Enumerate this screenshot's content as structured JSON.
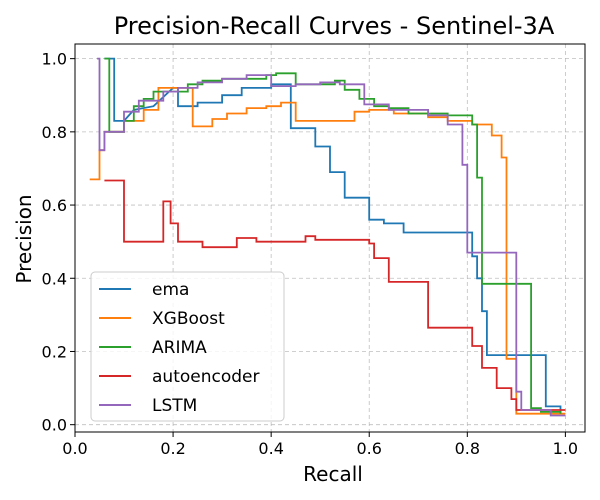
{
  "chart_data": {
    "type": "line",
    "step": true,
    "title": "Precision-Recall Curves - Sentinel-3A",
    "xlabel": "Recall",
    "ylabel": "Precision",
    "xlim": [
      0.0,
      1.04
    ],
    "ylim": [
      -0.02,
      1.04
    ],
    "xticks": [
      0.0,
      0.2,
      0.4,
      0.6,
      0.8,
      1.0
    ],
    "yticks": [
      0.0,
      0.2,
      0.4,
      0.6,
      0.8,
      1.0
    ],
    "xtick_labels": [
      "0.0",
      "0.2",
      "0.4",
      "0.6",
      "0.8",
      "1.0"
    ],
    "ytick_labels": [
      "0.0",
      "0.2",
      "0.4",
      "0.6",
      "0.8",
      "1.0"
    ],
    "grid": true,
    "legend_position": "lower-left",
    "series": [
      {
        "name": "ema",
        "color": "#1f77b4",
        "points": [
          [
            0.06,
            1.0
          ],
          [
            0.08,
            1.0
          ],
          [
            0.08,
            0.83
          ],
          [
            0.1,
            0.83
          ],
          [
            0.12,
            0.86
          ],
          [
            0.16,
            0.87
          ],
          [
            0.2,
            0.92
          ],
          [
            0.21,
            0.92
          ],
          [
            0.21,
            0.87
          ],
          [
            0.25,
            0.87
          ],
          [
            0.25,
            0.88
          ],
          [
            0.3,
            0.88
          ],
          [
            0.3,
            0.9
          ],
          [
            0.34,
            0.9
          ],
          [
            0.34,
            0.92
          ],
          [
            0.4,
            0.92
          ],
          [
            0.4,
            0.93
          ],
          [
            0.44,
            0.93
          ],
          [
            0.44,
            0.81
          ],
          [
            0.49,
            0.81
          ],
          [
            0.49,
            0.76
          ],
          [
            0.52,
            0.76
          ],
          [
            0.52,
            0.69
          ],
          [
            0.55,
            0.69
          ],
          [
            0.55,
            0.62
          ],
          [
            0.6,
            0.62
          ],
          [
            0.6,
            0.56
          ],
          [
            0.63,
            0.56
          ],
          [
            0.63,
            0.55
          ],
          [
            0.67,
            0.55
          ],
          [
            0.67,
            0.525
          ],
          [
            0.81,
            0.525
          ],
          [
            0.81,
            0.46
          ],
          [
            0.82,
            0.46
          ],
          [
            0.82,
            0.4
          ],
          [
            0.83,
            0.4
          ],
          [
            0.83,
            0.31
          ],
          [
            0.84,
            0.31
          ],
          [
            0.84,
            0.19
          ],
          [
            0.96,
            0.19
          ],
          [
            0.96,
            0.05
          ],
          [
            0.99,
            0.05
          ],
          [
            0.99,
            0.03
          ]
        ]
      },
      {
        "name": "XGBoost",
        "color": "#ff7f0e",
        "points": [
          [
            0.03,
            0.67
          ],
          [
            0.05,
            0.67
          ],
          [
            0.05,
            0.75
          ],
          [
            0.06,
            0.75
          ],
          [
            0.06,
            0.8
          ],
          [
            0.1,
            0.8
          ],
          [
            0.1,
            0.83
          ],
          [
            0.14,
            0.83
          ],
          [
            0.14,
            0.86
          ],
          [
            0.17,
            0.86
          ],
          [
            0.17,
            0.92
          ],
          [
            0.24,
            0.92
          ],
          [
            0.24,
            0.815
          ],
          [
            0.28,
            0.815
          ],
          [
            0.28,
            0.835
          ],
          [
            0.31,
            0.835
          ],
          [
            0.31,
            0.85
          ],
          [
            0.35,
            0.85
          ],
          [
            0.35,
            0.865
          ],
          [
            0.39,
            0.865
          ],
          [
            0.39,
            0.87
          ],
          [
            0.42,
            0.87
          ],
          [
            0.42,
            0.88
          ],
          [
            0.45,
            0.88
          ],
          [
            0.45,
            0.83
          ],
          [
            0.57,
            0.83
          ],
          [
            0.57,
            0.855
          ],
          [
            0.6,
            0.855
          ],
          [
            0.6,
            0.86
          ],
          [
            0.65,
            0.86
          ],
          [
            0.65,
            0.85
          ],
          [
            0.72,
            0.85
          ],
          [
            0.72,
            0.84
          ],
          [
            0.76,
            0.84
          ],
          [
            0.76,
            0.83
          ],
          [
            0.81,
            0.83
          ],
          [
            0.81,
            0.82
          ],
          [
            0.85,
            0.82
          ],
          [
            0.85,
            0.79
          ],
          [
            0.87,
            0.79
          ],
          [
            0.87,
            0.73
          ],
          [
            0.88,
            0.73
          ],
          [
            0.88,
            0.18
          ],
          [
            0.9,
            0.18
          ],
          [
            0.9,
            0.03
          ],
          [
            1.0,
            0.03
          ]
        ]
      },
      {
        "name": "ARIMA",
        "color": "#2ca02c",
        "points": [
          [
            0.06,
            1.0
          ],
          [
            0.07,
            1.0
          ],
          [
            0.07,
            0.8
          ],
          [
            0.1,
            0.8
          ],
          [
            0.1,
            0.83
          ],
          [
            0.12,
            0.83
          ],
          [
            0.12,
            0.87
          ],
          [
            0.14,
            0.87
          ],
          [
            0.14,
            0.89
          ],
          [
            0.16,
            0.89
          ],
          [
            0.16,
            0.91
          ],
          [
            0.23,
            0.91
          ],
          [
            0.23,
            0.93
          ],
          [
            0.26,
            0.93
          ],
          [
            0.26,
            0.94
          ],
          [
            0.3,
            0.94
          ],
          [
            0.3,
            0.945
          ],
          [
            0.39,
            0.945
          ],
          [
            0.39,
            0.955
          ],
          [
            0.41,
            0.955
          ],
          [
            0.41,
            0.96
          ],
          [
            0.45,
            0.96
          ],
          [
            0.45,
            0.93
          ],
          [
            0.53,
            0.93
          ],
          [
            0.53,
            0.94
          ],
          [
            0.55,
            0.94
          ],
          [
            0.55,
            0.915
          ],
          [
            0.58,
            0.915
          ],
          [
            0.58,
            0.89
          ],
          [
            0.61,
            0.89
          ],
          [
            0.61,
            0.87
          ],
          [
            0.64,
            0.87
          ],
          [
            0.64,
            0.865
          ],
          [
            0.68,
            0.865
          ],
          [
            0.68,
            0.85
          ],
          [
            0.76,
            0.85
          ],
          [
            0.76,
            0.845
          ],
          [
            0.81,
            0.845
          ],
          [
            0.81,
            0.82
          ],
          [
            0.82,
            0.82
          ],
          [
            0.82,
            0.675
          ],
          [
            0.83,
            0.675
          ],
          [
            0.83,
            0.385
          ],
          [
            0.93,
            0.385
          ],
          [
            0.93,
            0.045
          ],
          [
            0.95,
            0.045
          ],
          [
            0.95,
            0.035
          ],
          [
            0.99,
            0.035
          ],
          [
            0.99,
            0.03
          ]
        ]
      },
      {
        "name": "autoencoder",
        "color": "#d62728",
        "points": [
          [
            0.06,
            0.667
          ],
          [
            0.1,
            0.667
          ],
          [
            0.1,
            0.5
          ],
          [
            0.18,
            0.5
          ],
          [
            0.18,
            0.61
          ],
          [
            0.195,
            0.61
          ],
          [
            0.195,
            0.55
          ],
          [
            0.21,
            0.55
          ],
          [
            0.21,
            0.5
          ],
          [
            0.26,
            0.5
          ],
          [
            0.26,
            0.485
          ],
          [
            0.33,
            0.485
          ],
          [
            0.33,
            0.51
          ],
          [
            0.37,
            0.51
          ],
          [
            0.37,
            0.5
          ],
          [
            0.47,
            0.5
          ],
          [
            0.47,
            0.515
          ],
          [
            0.49,
            0.515
          ],
          [
            0.49,
            0.505
          ],
          [
            0.6,
            0.505
          ],
          [
            0.6,
            0.495
          ],
          [
            0.61,
            0.495
          ],
          [
            0.61,
            0.455
          ],
          [
            0.64,
            0.455
          ],
          [
            0.64,
            0.39
          ],
          [
            0.72,
            0.39
          ],
          [
            0.72,
            0.265
          ],
          [
            0.81,
            0.265
          ],
          [
            0.81,
            0.215
          ],
          [
            0.83,
            0.215
          ],
          [
            0.83,
            0.155
          ],
          [
            0.86,
            0.155
          ],
          [
            0.86,
            0.1
          ],
          [
            0.89,
            0.1
          ],
          [
            0.89,
            0.07
          ],
          [
            0.9,
            0.07
          ],
          [
            0.9,
            0.04
          ],
          [
            1.0,
            0.04
          ]
        ]
      },
      {
        "name": "LSTM",
        "color": "#9467bd",
        "points": [
          [
            0.045,
            1.0
          ],
          [
            0.05,
            1.0
          ],
          [
            0.05,
            0.75
          ],
          [
            0.06,
            0.75
          ],
          [
            0.06,
            0.8
          ],
          [
            0.1,
            0.8
          ],
          [
            0.1,
            0.855
          ],
          [
            0.13,
            0.855
          ],
          [
            0.13,
            0.885
          ],
          [
            0.18,
            0.885
          ],
          [
            0.18,
            0.91
          ],
          [
            0.21,
            0.91
          ],
          [
            0.21,
            0.92
          ],
          [
            0.25,
            0.92
          ],
          [
            0.25,
            0.935
          ],
          [
            0.3,
            0.935
          ],
          [
            0.3,
            0.945
          ],
          [
            0.35,
            0.945
          ],
          [
            0.35,
            0.955
          ],
          [
            0.4,
            0.955
          ],
          [
            0.4,
            0.925
          ],
          [
            0.45,
            0.925
          ],
          [
            0.45,
            0.93
          ],
          [
            0.5,
            0.93
          ],
          [
            0.5,
            0.935
          ],
          [
            0.54,
            0.935
          ],
          [
            0.54,
            0.93
          ],
          [
            0.59,
            0.93
          ],
          [
            0.59,
            0.875
          ],
          [
            0.64,
            0.875
          ],
          [
            0.64,
            0.86
          ],
          [
            0.72,
            0.86
          ],
          [
            0.72,
            0.845
          ],
          [
            0.76,
            0.845
          ],
          [
            0.76,
            0.82
          ],
          [
            0.79,
            0.82
          ],
          [
            0.79,
            0.71
          ],
          [
            0.8,
            0.71
          ],
          [
            0.8,
            0.47
          ],
          [
            0.9,
            0.47
          ],
          [
            0.9,
            0.09
          ],
          [
            0.91,
            0.09
          ],
          [
            0.91,
            0.04
          ],
          [
            0.97,
            0.04
          ],
          [
            0.97,
            0.025
          ],
          [
            1.0,
            0.025
          ]
        ]
      }
    ]
  }
}
